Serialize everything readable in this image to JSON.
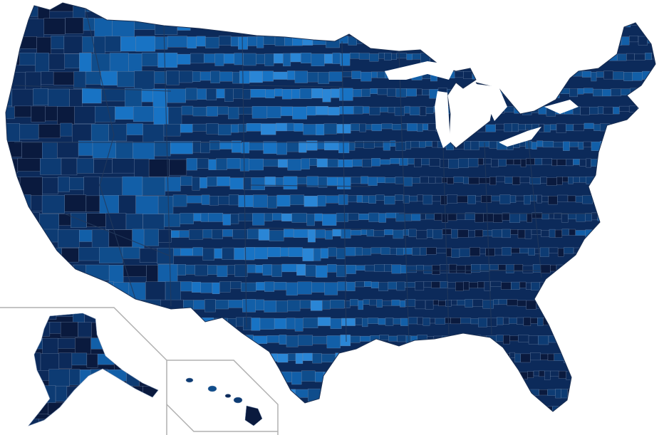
{
  "map": {
    "type": "county-choropleth",
    "region": "United States",
    "insets": [
      "alaska",
      "hawaii"
    ],
    "color_scale": [
      "#0a1a3e",
      "#0c2a5a",
      "#0d3b73",
      "#0f4d8c",
      "#125fa8",
      "#1873c4",
      "#2a86d6"
    ],
    "border_color": "#6f86a8",
    "inset_frame_color": "#b0b0b0",
    "background_color": "#ffffff"
  }
}
